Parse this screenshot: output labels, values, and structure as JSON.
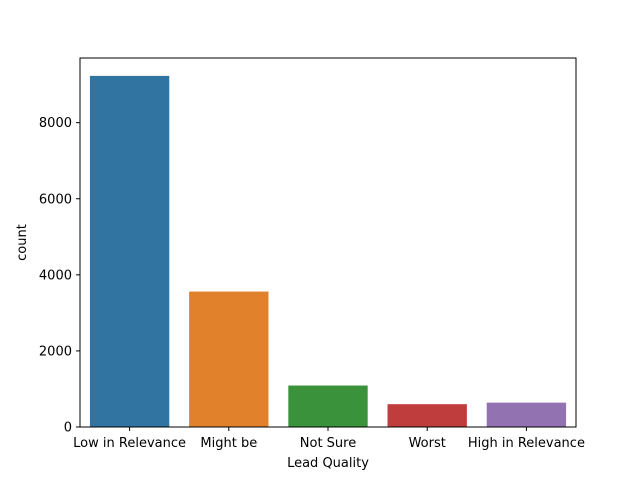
{
  "chart_data": {
    "type": "bar",
    "title": "",
    "xlabel": "Lead Quality",
    "ylabel": "count",
    "categories": [
      "Low in Relevance",
      "Might be",
      "Not Sure",
      "Worst",
      "High in Relevance"
    ],
    "values": [
      9230,
      3560,
      1090,
      600,
      640
    ],
    "colors": [
      "#3274a1",
      "#e1812c",
      "#3a923a",
      "#c03d3e",
      "#9372b2"
    ],
    "ylim": [
      0,
      9700
    ],
    "yticks": [
      0,
      2000,
      4000,
      6000,
      8000
    ],
    "grid": false,
    "legend": "none"
  }
}
